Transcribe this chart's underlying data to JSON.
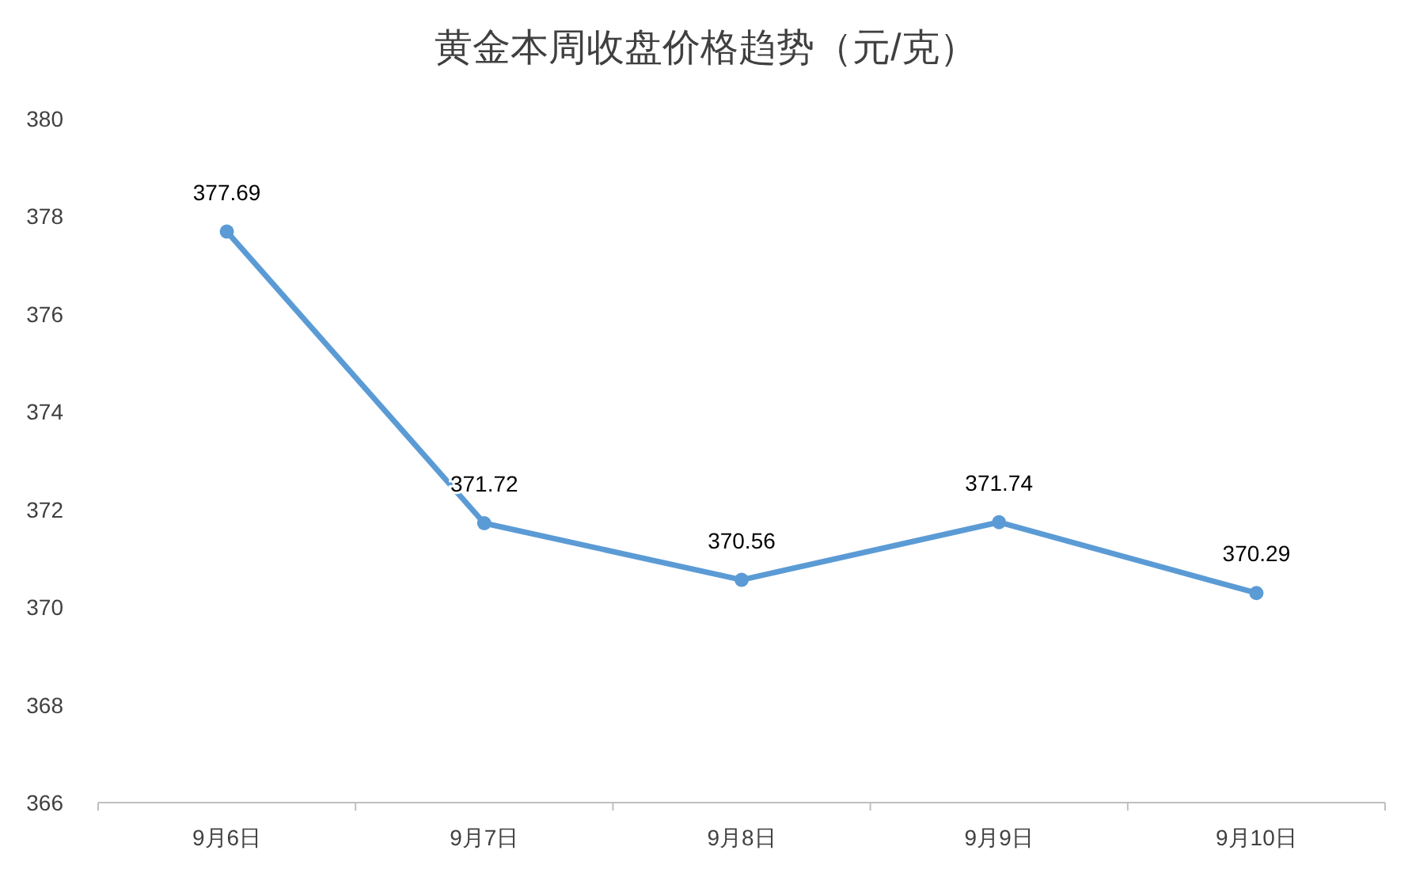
{
  "chart_data": {
    "type": "line",
    "title": "黄金本周收盘价格趋势（元/克）",
    "categories": [
      "9月6日",
      "9月7日",
      "9月8日",
      "9月9日",
      "9月10日"
    ],
    "series": [
      {
        "color": "#5b9bd5",
        "values": [
          377.69,
          371.72,
          370.56,
          371.74,
          370.29
        ]
      }
    ],
    "ylim": [
      366,
      380
    ],
    "yticks": [
      366,
      368,
      370,
      372,
      374,
      376,
      378,
      380
    ],
    "data_labels": true,
    "marker": "circle",
    "line_style": "solid"
  }
}
